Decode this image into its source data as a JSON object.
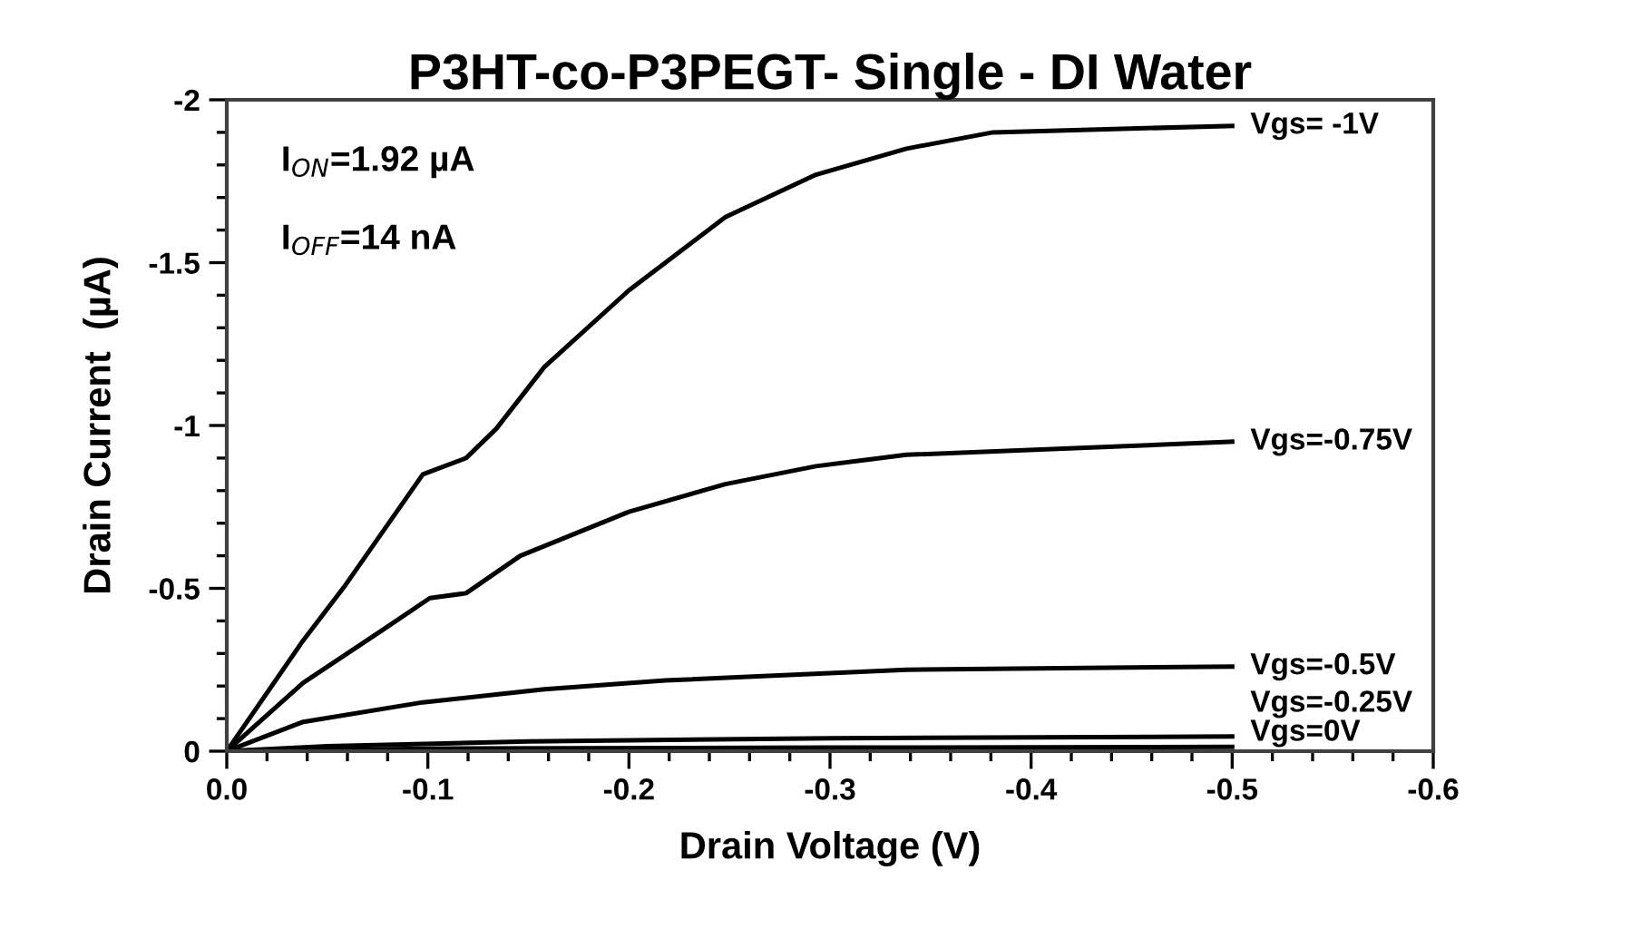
{
  "chart_data": {
    "type": "line",
    "title": "P3HT-co-P3PEGT- Single - DI Water",
    "xlabel": "Drain Voltage (V)",
    "ylabel": "Drain Current  (µA)",
    "xlim": [
      0,
      -0.6
    ],
    "ylim": [
      0,
      -2
    ],
    "xticks": [
      {
        "value": 0,
        "label": "0.0"
      },
      -0.1,
      -0.2,
      -0.3,
      -0.4,
      -0.5,
      -0.6
    ],
    "yticks": [
      0,
      -0.5,
      -1,
      -1.5,
      -2
    ],
    "grid": false,
    "legend": false,
    "marker": "none",
    "line_style": "solid",
    "annotations": [
      "I$_{ON}$=1.92 µA",
      "I$_{OFF}$=14 nA"
    ],
    "series": [
      {
        "name": "Vgs= -1V",
        "color": "#000000",
        "x": [
          0,
          -0.038,
          -0.059,
          -0.0975,
          -0.119,
          -0.134,
          -0.158,
          -0.2,
          -0.248,
          -0.293,
          -0.338,
          -0.381,
          -0.5
        ],
        "values": [
          0,
          -0.34,
          -0.51,
          -0.85,
          -0.9,
          -0.99,
          -1.18,
          -1.415,
          -1.64,
          -1.77,
          -1.85,
          -1.9,
          -1.92
        ]
      },
      {
        "name": "Vgs=-0.75V",
        "color": "#000000",
        "x": [
          0,
          -0.038,
          -0.077,
          -0.101,
          -0.119,
          -0.146,
          -0.2,
          -0.248,
          -0.293,
          -0.338,
          -0.5
        ],
        "values": [
          0,
          -0.21,
          -0.37,
          -0.47,
          -0.485,
          -0.6,
          -0.735,
          -0.82,
          -0.875,
          -0.91,
          -0.95
        ]
      },
      {
        "name": "Vgs=-0.5V",
        "color": "#000000",
        "x": [
          0,
          -0.038,
          -0.0975,
          -0.158,
          -0.218,
          -0.338,
          -0.5
        ],
        "values": [
          0,
          -0.09,
          -0.15,
          -0.19,
          -0.217,
          -0.25,
          -0.26
        ]
      },
      {
        "name": "Vgs=-0.25V",
        "color": "#000000",
        "x": [
          0,
          -0.05,
          -0.15,
          -0.3,
          -0.5
        ],
        "values": [
          0,
          -0.015,
          -0.03,
          -0.04,
          -0.045
        ]
      },
      {
        "name": "Vgs=0V",
        "color": "#000000",
        "x": [
          0,
          -0.1,
          -0.3,
          -0.5
        ],
        "values": [
          0,
          -0.008,
          -0.011,
          -0.013
        ]
      }
    ]
  }
}
